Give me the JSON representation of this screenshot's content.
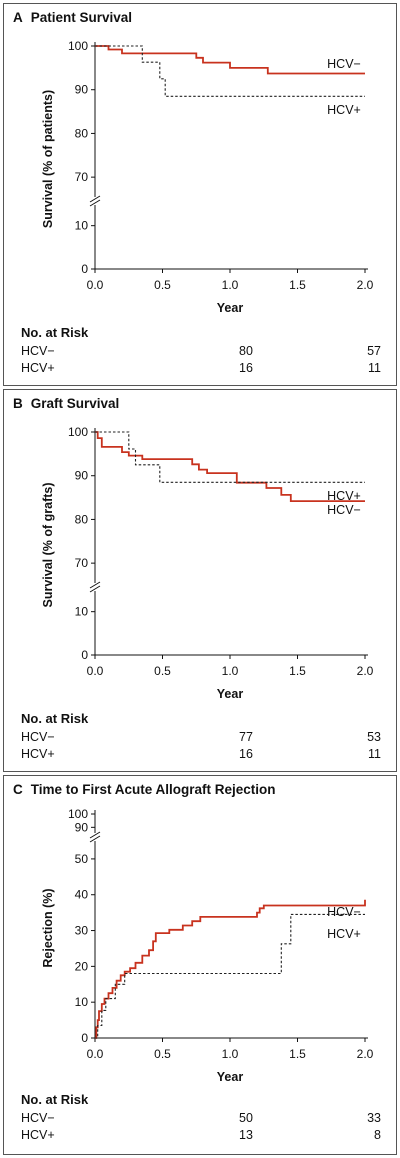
{
  "chart_data": [
    {
      "panel": "A",
      "type": "line",
      "title": "Patient Survival",
      "xlabel": "Year",
      "ylabel": "Survival (% of patients)",
      "xlim": [
        0,
        2.0
      ],
      "ylim": [
        0,
        100
      ],
      "axis_break": {
        "below": 65,
        "above": 15
      },
      "xticks": [
        "0.0",
        "0.5",
        "1.0",
        "1.5",
        "2.0"
      ],
      "yticks": [
        "0",
        "10",
        "70",
        "80",
        "90",
        "100"
      ],
      "series": [
        {
          "name": "HCV−",
          "style": "solid",
          "color": "#c8321e",
          "x": [
            0,
            0.1,
            0.2,
            0.5,
            0.75,
            0.8,
            1.0,
            1.28,
            2.0
          ],
          "y": [
            100,
            99.2,
            98.3,
            98.3,
            97.3,
            96.2,
            95,
            93.7,
            93.7
          ]
        },
        {
          "name": "HCV+",
          "style": "dashed",
          "color": "#222222",
          "x": [
            0,
            0.35,
            0.48,
            0.52,
            2.0
          ],
          "y": [
            100,
            96.3,
            92.5,
            88.5,
            88.5
          ]
        }
      ],
      "line_labels": [
        "HCV−",
        "HCV+"
      ],
      "risk": {
        "header": "No. at Risk",
        "rows": [
          {
            "label": "HCV−",
            "v1": "80",
            "v2": "57"
          },
          {
            "label": "HCV+",
            "v1": "16",
            "v2": "11"
          }
        ]
      }
    },
    {
      "panel": "B",
      "type": "line",
      "title": "Graft Survival",
      "xlabel": "Year",
      "ylabel": "Survival (% of grafts)",
      "xlim": [
        0,
        2.0
      ],
      "ylim": [
        0,
        100
      ],
      "axis_break": {
        "below": 65,
        "above": 15
      },
      "xticks": [
        "0.0",
        "0.5",
        "1.0",
        "1.5",
        "2.0"
      ],
      "yticks": [
        "0",
        "10",
        "70",
        "80",
        "90",
        "100"
      ],
      "series": [
        {
          "name": "HCV−",
          "style": "solid",
          "color": "#c8321e",
          "x": [
            0,
            0.02,
            0.05,
            0.2,
            0.25,
            0.35,
            0.5,
            0.72,
            0.77,
            0.83,
            1.05,
            1.27,
            1.38,
            1.45,
            2.0
          ],
          "y": [
            100,
            98.6,
            96.6,
            95.4,
            94.6,
            93.8,
            93.8,
            92.6,
            91.4,
            90.6,
            88.4,
            87.2,
            85.6,
            84.2,
            84.2
          ]
        },
        {
          "name": "HCV+",
          "style": "dashed",
          "color": "#222222",
          "x": [
            0,
            0.25,
            0.3,
            0.48,
            2.0
          ],
          "y": [
            100,
            96.1,
            92.5,
            88.5,
            88.5
          ]
        }
      ],
      "line_labels": [
        "HCV+",
        "HCV−"
      ],
      "risk": {
        "header": "No. at Risk",
        "rows": [
          {
            "label": "HCV−",
            "v1": "77",
            "v2": "53"
          },
          {
            "label": "HCV+",
            "v1": "16",
            "v2": "11"
          }
        ]
      }
    },
    {
      "panel": "C",
      "type": "line",
      "title": "Time to First Acute Allograft Rejection",
      "xlabel": "Year",
      "ylabel": "Rejection (%)",
      "xlim": [
        0,
        2.0
      ],
      "ylim": [
        0,
        100
      ],
      "axis_break": {
        "below": 85,
        "above": 55
      },
      "xticks": [
        "0.0",
        "0.5",
        "1.0",
        "1.5",
        "2.0"
      ],
      "yticks": [
        "0",
        "10",
        "20",
        "30",
        "40",
        "50",
        "90",
        "100"
      ],
      "series": [
        {
          "name": "HCV−",
          "style": "solid",
          "color": "#c8321e",
          "x": [
            0,
            0.01,
            0.02,
            0.03,
            0.05,
            0.07,
            0.1,
            0.13,
            0.16,
            0.19,
            0.22,
            0.26,
            0.3,
            0.35,
            0.4,
            0.43,
            0.45,
            0.55,
            0.65,
            0.72,
            0.78,
            1.2,
            1.22,
            1.25,
            2.0
          ],
          "y": [
            0,
            3,
            5,
            7.5,
            9.5,
            11,
            12.5,
            14,
            16,
            17.5,
            18.5,
            19.5,
            21,
            23,
            24.5,
            27,
            29.3,
            30.2,
            31.4,
            32.6,
            33.8,
            35,
            36.2,
            37,
            38.6
          ]
        },
        {
          "name": "HCV+",
          "style": "dashed",
          "color": "#222222",
          "x": [
            0,
            0.02,
            0.05,
            0.08,
            0.15,
            0.22,
            1.38,
            1.45,
            2.0
          ],
          "y": [
            0,
            3.5,
            7.7,
            11,
            15,
            18,
            26.3,
            34.5,
            34.5
          ]
        }
      ],
      "line_labels": [
        "HCV−",
        "HCV+"
      ],
      "risk": {
        "header": "No. at Risk",
        "rows": [
          {
            "label": "HCV−",
            "v1": "50",
            "v2": "33"
          },
          {
            "label": "HCV+",
            "v1": "13",
            "v2": "8"
          }
        ]
      }
    }
  ]
}
